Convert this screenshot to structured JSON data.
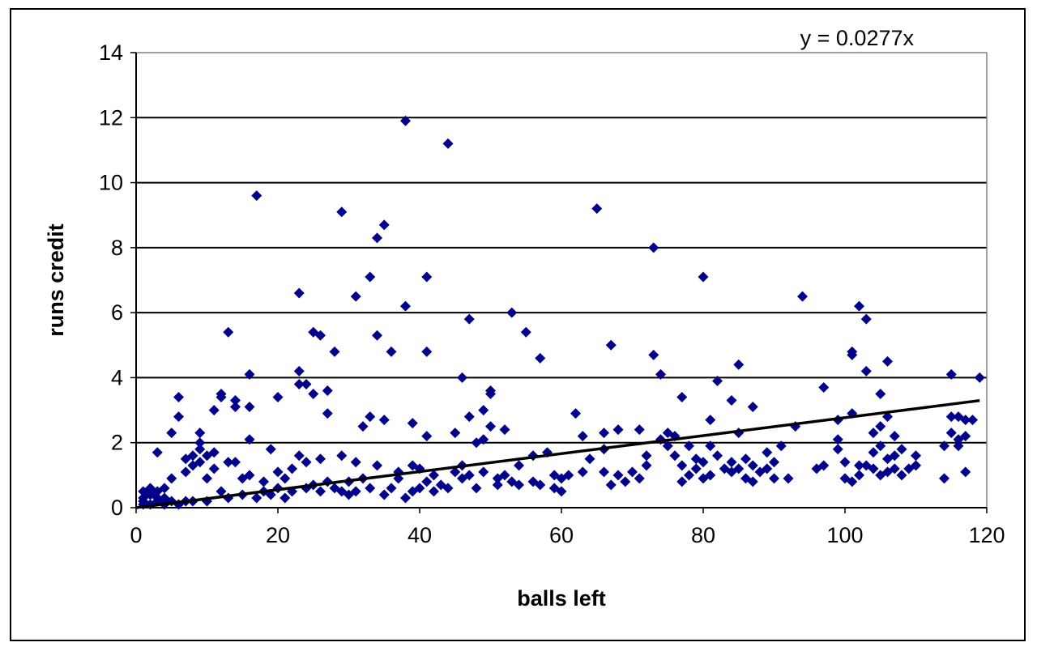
{
  "chart_data": {
    "type": "scatter",
    "xlabel": "balls left",
    "ylabel": "runs credit",
    "xlim": [
      0,
      120
    ],
    "ylim": [
      0,
      14
    ],
    "x_ticks": [
      "0",
      "20",
      "40",
      "60",
      "80",
      "100",
      "120"
    ],
    "y_ticks": [
      "0",
      "2",
      "4",
      "6",
      "8",
      "10",
      "12",
      "14"
    ],
    "grid": "horizontal major gridlines",
    "legend": "none",
    "marker": "diamond",
    "marker_color": "#00008B",
    "trendline": {
      "label": "y = 0.0277x",
      "slope": 0.0277,
      "x_range": [
        0,
        119
      ],
      "color": "#000000"
    },
    "series": [
      {
        "points": [
          [
            1,
            0.1
          ],
          [
            1,
            0.2
          ],
          [
            1,
            0.5
          ],
          [
            1,
            0.3
          ],
          [
            2,
            0.4
          ],
          [
            2,
            0.1
          ],
          [
            2,
            0.6
          ],
          [
            3,
            0.2
          ],
          [
            3,
            0.5
          ],
          [
            3,
            0.3
          ],
          [
            3,
            1.7
          ],
          [
            4,
            0.3
          ],
          [
            4,
            0.6
          ],
          [
            4,
            0.1
          ],
          [
            5,
            0.9
          ],
          [
            5,
            2.3
          ],
          [
            5,
            0.2
          ],
          [
            6,
            2.8
          ],
          [
            6,
            0.1
          ],
          [
            6,
            3.4
          ],
          [
            7,
            1.1
          ],
          [
            7,
            1.5
          ],
          [
            7,
            0.2
          ],
          [
            8,
            1.3
          ],
          [
            8,
            0.2
          ],
          [
            8,
            1.6
          ],
          [
            9,
            2.0
          ],
          [
            9,
            2.3
          ],
          [
            9,
            1.8
          ],
          [
            9,
            1.4
          ],
          [
            10,
            1.6
          ],
          [
            10,
            0.9
          ],
          [
            10,
            0.2
          ],
          [
            11,
            3.0
          ],
          [
            11,
            1.7
          ],
          [
            11,
            1.2
          ],
          [
            12,
            3.5
          ],
          [
            12,
            3.4
          ],
          [
            12,
            0.5
          ],
          [
            13,
            5.4
          ],
          [
            13,
            1.4
          ],
          [
            13,
            0.3
          ],
          [
            14,
            3.3
          ],
          [
            14,
            3.1
          ],
          [
            14,
            1.4
          ],
          [
            15,
            0.9
          ],
          [
            15,
            0.4
          ],
          [
            16,
            4.1
          ],
          [
            16,
            3.1
          ],
          [
            16,
            2.1
          ],
          [
            16,
            1.0
          ],
          [
            17,
            9.6
          ],
          [
            17,
            0.3
          ],
          [
            18,
            0.5
          ],
          [
            18,
            0.8
          ],
          [
            19,
            1.8
          ],
          [
            19,
            0.4
          ],
          [
            20,
            3.4
          ],
          [
            20,
            1.1
          ],
          [
            20,
            0.6
          ],
          [
            21,
            0.9
          ],
          [
            21,
            0.3
          ],
          [
            22,
            1.2
          ],
          [
            22,
            0.5
          ],
          [
            23,
            6.6
          ],
          [
            23,
            4.2
          ],
          [
            23,
            3.8
          ],
          [
            23,
            1.6
          ],
          [
            24,
            3.8
          ],
          [
            24,
            1.4
          ],
          [
            24,
            0.6
          ],
          [
            25,
            5.4
          ],
          [
            25,
            3.5
          ],
          [
            25,
            0.7
          ],
          [
            26,
            5.3
          ],
          [
            26,
            1.5
          ],
          [
            26,
            0.5
          ],
          [
            27,
            3.6
          ],
          [
            27,
            2.9
          ],
          [
            27,
            0.8
          ],
          [
            28,
            4.8
          ],
          [
            28,
            0.6
          ],
          [
            29,
            9.1
          ],
          [
            29,
            1.6
          ],
          [
            29,
            0.5
          ],
          [
            30,
            0.4
          ],
          [
            30,
            0.8
          ],
          [
            31,
            6.5
          ],
          [
            31,
            1.4
          ],
          [
            31,
            0.5
          ],
          [
            32,
            2.5
          ],
          [
            32,
            0.9
          ],
          [
            33,
            7.1
          ],
          [
            33,
            2.8
          ],
          [
            33,
            0.6
          ],
          [
            34,
            8.3
          ],
          [
            34,
            5.3
          ],
          [
            34,
            1.3
          ],
          [
            35,
            8.7
          ],
          [
            35,
            2.7
          ],
          [
            35,
            0.4
          ],
          [
            36,
            4.8
          ],
          [
            36,
            0.6
          ],
          [
            37,
            1.1
          ],
          [
            37,
            0.9
          ],
          [
            38,
            11.9
          ],
          [
            38,
            6.2
          ],
          [
            38,
            0.3
          ],
          [
            39,
            2.6
          ],
          [
            39,
            1.3
          ],
          [
            39,
            0.5
          ],
          [
            40,
            1.2
          ],
          [
            40,
            0.6
          ],
          [
            41,
            7.1
          ],
          [
            41,
            4.8
          ],
          [
            41,
            2.2
          ],
          [
            41,
            0.8
          ],
          [
            42,
            1.0
          ],
          [
            42,
            0.5
          ],
          [
            43,
            0.7
          ],
          [
            44,
            11.2
          ],
          [
            44,
            0.6
          ],
          [
            45,
            2.3
          ],
          [
            45,
            1.1
          ],
          [
            46,
            4.0
          ],
          [
            46,
            1.3
          ],
          [
            46,
            0.9
          ],
          [
            47,
            5.8
          ],
          [
            47,
            2.8
          ],
          [
            47,
            1.0
          ],
          [
            48,
            2.0
          ],
          [
            48,
            0.6
          ],
          [
            49,
            3.0
          ],
          [
            49,
            2.1
          ],
          [
            49,
            1.1
          ],
          [
            50,
            3.6
          ],
          [
            50,
            3.5
          ],
          [
            50,
            2.5
          ],
          [
            51,
            0.9
          ],
          [
            51,
            0.7
          ],
          [
            52,
            2.4
          ],
          [
            52,
            1.0
          ],
          [
            53,
            6.0
          ],
          [
            53,
            0.8
          ],
          [
            54,
            1.3
          ],
          [
            54,
            0.7
          ],
          [
            55,
            5.4
          ],
          [
            56,
            1.6
          ],
          [
            56,
            0.8
          ],
          [
            57,
            4.6
          ],
          [
            57,
            0.7
          ],
          [
            58,
            1.7
          ],
          [
            59,
            0.6
          ],
          [
            59,
            1.0
          ],
          [
            60,
            0.9
          ],
          [
            60,
            0.5
          ],
          [
            61,
            1.0
          ],
          [
            62,
            2.9
          ],
          [
            63,
            2.2
          ],
          [
            63,
            1.1
          ],
          [
            64,
            1.5
          ],
          [
            65,
            9.2
          ],
          [
            66,
            2.3
          ],
          [
            66,
            1.8
          ],
          [
            66,
            1.1
          ],
          [
            67,
            5.0
          ],
          [
            67,
            0.7
          ],
          [
            68,
            2.4
          ],
          [
            68,
            1.0
          ],
          [
            69,
            0.8
          ],
          [
            70,
            1.1
          ],
          [
            71,
            2.4
          ],
          [
            71,
            0.9
          ],
          [
            72,
            1.3
          ],
          [
            72,
            1.6
          ],
          [
            73,
            8.0
          ],
          [
            73,
            4.7
          ],
          [
            74,
            4.1
          ],
          [
            74,
            2.1
          ],
          [
            75,
            2.3
          ],
          [
            75,
            1.9
          ],
          [
            76,
            2.2
          ],
          [
            76,
            1.6
          ],
          [
            77,
            3.4
          ],
          [
            77,
            1.3
          ],
          [
            77,
            0.8
          ],
          [
            78,
            1.9
          ],
          [
            78,
            1.0
          ],
          [
            79,
            1.5
          ],
          [
            79,
            1.2
          ],
          [
            80,
            7.1
          ],
          [
            80,
            1.4
          ],
          [
            80,
            0.9
          ],
          [
            81,
            2.7
          ],
          [
            81,
            1.9
          ],
          [
            81,
            1.0
          ],
          [
            82,
            3.9
          ],
          [
            82,
            1.6
          ],
          [
            83,
            1.2
          ],
          [
            84,
            3.3
          ],
          [
            84,
            1.4
          ],
          [
            84,
            1.1
          ],
          [
            85,
            4.4
          ],
          [
            85,
            2.3
          ],
          [
            85,
            1.2
          ],
          [
            86,
            1.5
          ],
          [
            86,
            0.9
          ],
          [
            87,
            3.1
          ],
          [
            87,
            1.3
          ],
          [
            87,
            0.8
          ],
          [
            88,
            1.1
          ],
          [
            89,
            1.7
          ],
          [
            89,
            1.2
          ],
          [
            90,
            1.4
          ],
          [
            90,
            0.9
          ],
          [
            91,
            1.9
          ],
          [
            92,
            0.9
          ],
          [
            93,
            2.5
          ],
          [
            94,
            6.5
          ],
          [
            96,
            1.2
          ],
          [
            97,
            3.7
          ],
          [
            97,
            1.3
          ],
          [
            99,
            2.7
          ],
          [
            99,
            2.1
          ],
          [
            99,
            1.8
          ],
          [
            100,
            0.9
          ],
          [
            100,
            1.4
          ],
          [
            101,
            4.8
          ],
          [
            101,
            4.7
          ],
          [
            101,
            2.9
          ],
          [
            101,
            0.8
          ],
          [
            102,
            6.2
          ],
          [
            102,
            1.0
          ],
          [
            102,
            1.3
          ],
          [
            103,
            5.8
          ],
          [
            103,
            4.2
          ],
          [
            103,
            1.3
          ],
          [
            104,
            2.3
          ],
          [
            104,
            1.7
          ],
          [
            104,
            1.2
          ],
          [
            105,
            3.5
          ],
          [
            105,
            2.5
          ],
          [
            105,
            1.9
          ],
          [
            105,
            1.0
          ],
          [
            106,
            4.5
          ],
          [
            106,
            2.8
          ],
          [
            106,
            1.5
          ],
          [
            106,
            1.1
          ],
          [
            107,
            2.2
          ],
          [
            107,
            1.6
          ],
          [
            107,
            1.2
          ],
          [
            108,
            1.8
          ],
          [
            108,
            1.0
          ],
          [
            109,
            1.2
          ],
          [
            110,
            1.6
          ],
          [
            110,
            1.3
          ],
          [
            114,
            1.9
          ],
          [
            114,
            0.9
          ],
          [
            115,
            4.1
          ],
          [
            115,
            2.8
          ],
          [
            115,
            2.3
          ],
          [
            116,
            2.8
          ],
          [
            116,
            2.1
          ],
          [
            116,
            1.9
          ],
          [
            117,
            2.7
          ],
          [
            117,
            2.2
          ],
          [
            117,
            1.1
          ],
          [
            118,
            2.7
          ],
          [
            119,
            4.0
          ]
        ]
      }
    ]
  }
}
